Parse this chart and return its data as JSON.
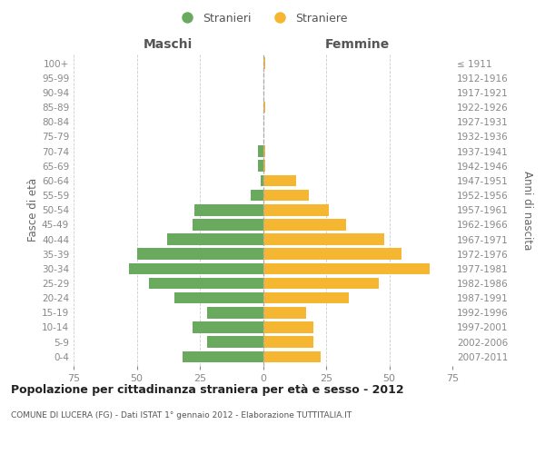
{
  "age_groups": [
    "0-4",
    "5-9",
    "10-14",
    "15-19",
    "20-24",
    "25-29",
    "30-34",
    "35-39",
    "40-44",
    "45-49",
    "50-54",
    "55-59",
    "60-64",
    "65-69",
    "70-74",
    "75-79",
    "80-84",
    "85-89",
    "90-94",
    "95-99",
    "100+"
  ],
  "birth_years": [
    "2007-2011",
    "2002-2006",
    "1997-2001",
    "1992-1996",
    "1987-1991",
    "1982-1986",
    "1977-1981",
    "1972-1976",
    "1967-1971",
    "1962-1966",
    "1957-1961",
    "1952-1956",
    "1947-1951",
    "1942-1946",
    "1937-1941",
    "1932-1936",
    "1927-1931",
    "1922-1926",
    "1917-1921",
    "1912-1916",
    "≤ 1911"
  ],
  "males": [
    32,
    22,
    28,
    22,
    35,
    45,
    53,
    50,
    38,
    28,
    27,
    5,
    1,
    2,
    2,
    0,
    0,
    0,
    0,
    0,
    0
  ],
  "females": [
    23,
    20,
    20,
    17,
    34,
    46,
    66,
    55,
    48,
    33,
    26,
    18,
    13,
    1,
    1,
    0,
    0,
    1,
    0,
    0,
    1
  ],
  "male_color": "#6aaa5f",
  "female_color": "#f5b731",
  "bg_color": "#ffffff",
  "grid_color": "#cccccc",
  "tick_color": "#888888",
  "label_color": "#666666",
  "header_color": "#555555",
  "title": "Popolazione per cittadinanza straniera per età e sesso - 2012",
  "subtitle": "COMUNE DI LUCERA (FG) - Dati ISTAT 1° gennaio 2012 - Elaborazione TUTTITALIA.IT",
  "maschi_label": "Maschi",
  "femmine_label": "Femmine",
  "ylabel_left": "Fasce di età",
  "ylabel_right": "Anni di nascita",
  "legend_m": "Stranieri",
  "legend_f": "Straniere",
  "xlim": 75,
  "bar_height": 0.78
}
